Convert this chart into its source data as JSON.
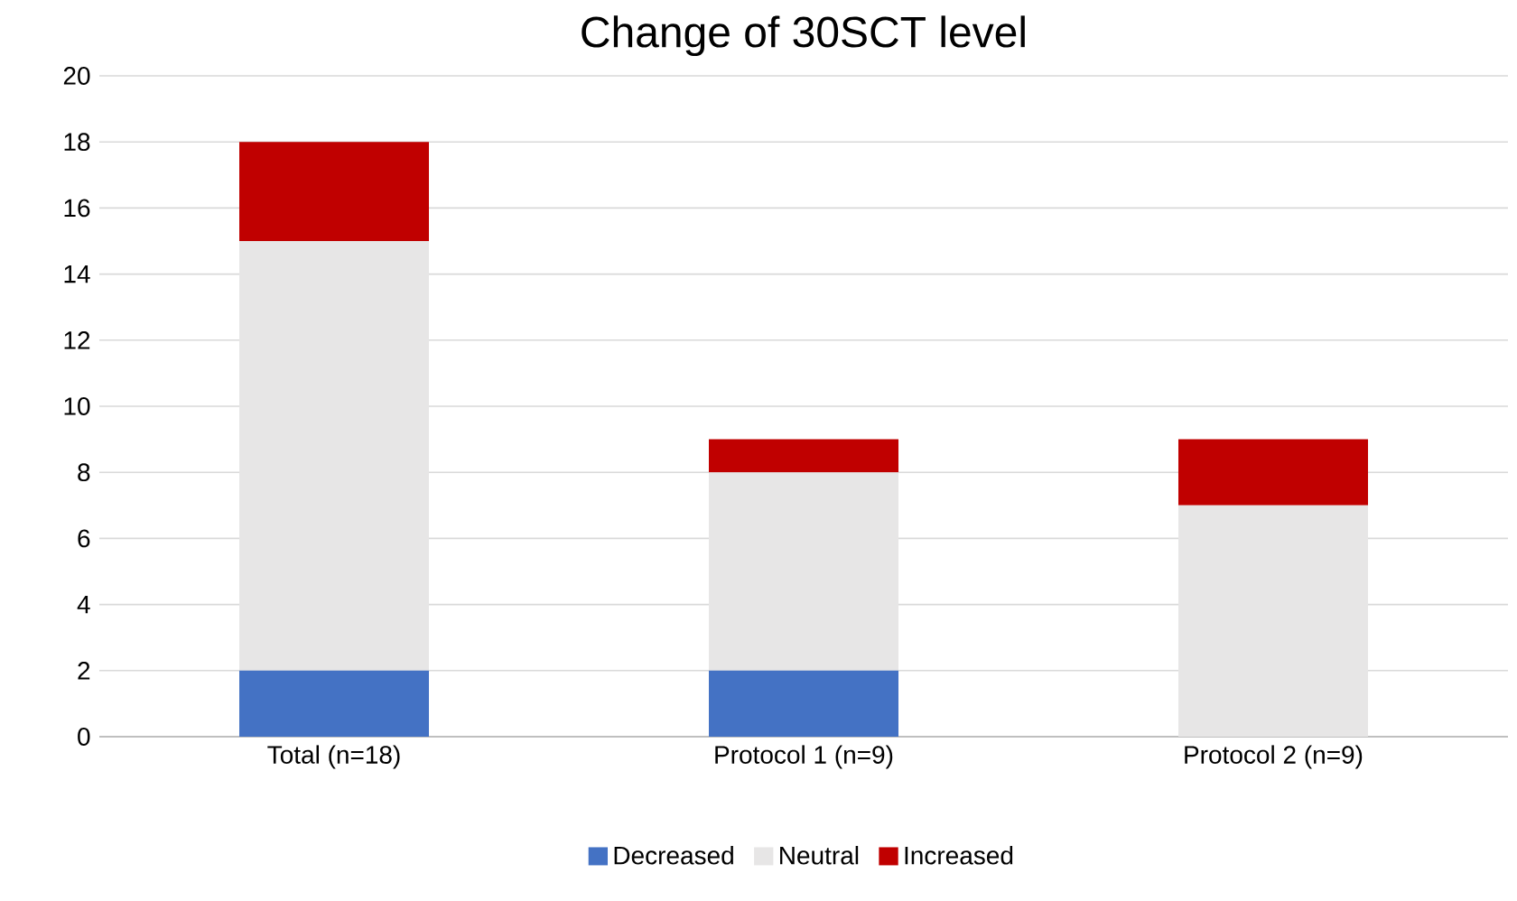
{
  "chart_data": {
    "type": "bar",
    "title": "Change of 30SCT level",
    "categories": [
      "Total (n=18)",
      "Protocol 1 (n=9)",
      "Protocol 2 (n=9)"
    ],
    "stacked": true,
    "series": [
      {
        "name": "Decreased",
        "color": "#4472c4",
        "values": [
          2,
          2,
          0
        ]
      },
      {
        "name": "Neutral",
        "color": "#e7e6e6",
        "values": [
          13,
          6,
          7
        ]
      },
      {
        "name": "Increased",
        "color": "#c00000",
        "values": [
          3,
          1,
          2
        ]
      }
    ],
    "ylim": [
      0,
      20
    ],
    "yticks": [
      0,
      2,
      4,
      6,
      8,
      10,
      12,
      14,
      16,
      18,
      20
    ],
    "grid": "y",
    "legend": "bottom"
  }
}
